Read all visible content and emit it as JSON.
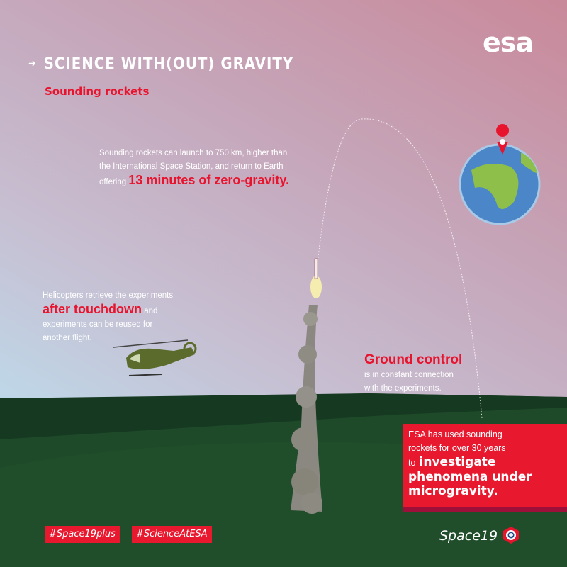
{
  "header": {
    "title": "SCIENCE WITH(OUT) GRAVITY",
    "subtitle": "Sounding rockets",
    "logo": "esa"
  },
  "launch_text": {
    "line1": "Sounding rockets can launch to 750 km, higher than",
    "line2": "the International Space Station, and return to Earth",
    "line3_prefix": "offering",
    "highlight": "13 minutes of zero-gravity."
  },
  "helicopter_text": {
    "line1": "Helicopters retrieve the experiments",
    "highlight": "after touchdown",
    "line2_suffix": "and",
    "line3": "experiments can be reused for",
    "line4": "another flight."
  },
  "ground_control": {
    "heading": "Ground control",
    "line1": "is in constant connection",
    "line2": "with the experiments."
  },
  "callout": {
    "line1": "ESA has used sounding",
    "line2": "rockets for over 30 years",
    "line3_prefix": "to",
    "bold1": "investigate",
    "bold2": "phenomena under",
    "bold3": "microgravity."
  },
  "hashtags": [
    "#Space19plus",
    "#ScienceAtESA"
  ],
  "footer_logo": "Space19",
  "colors": {
    "accent": "#e8132d",
    "ground": "#1f4a2a",
    "sky_top": "#c8899a",
    "sky_bottom": "#bcdcec"
  }
}
